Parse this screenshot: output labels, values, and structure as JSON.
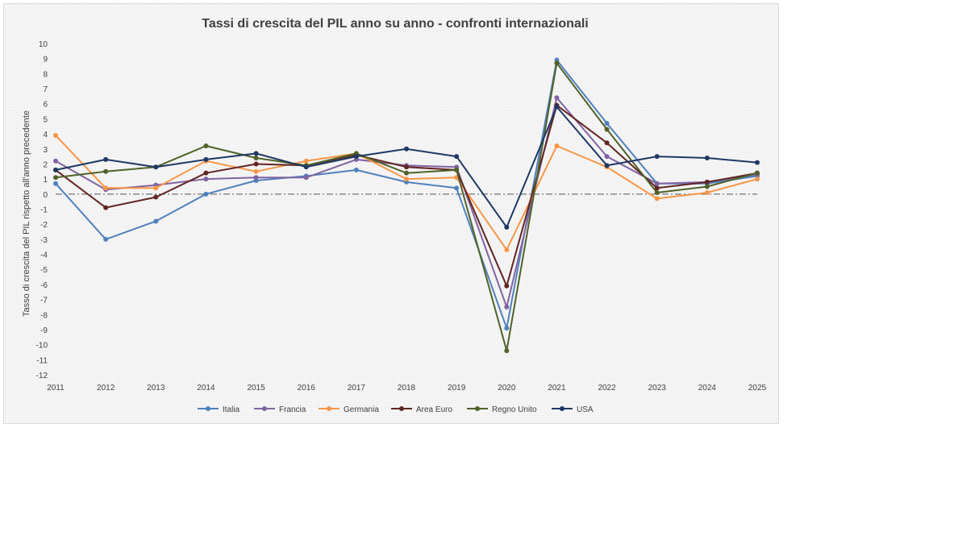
{
  "chart_data": {
    "type": "line",
    "title": "Tassi di crescita del PIL anno su anno - confronti internazionali",
    "ylabel": "Tasso di crescita del PIL rispetto all'anno precedente",
    "xlabel": "",
    "x": [
      "2011",
      "2012",
      "2013",
      "2014",
      "2015",
      "2016",
      "2017",
      "2018",
      "2019",
      "2020",
      "2021",
      "2022",
      "2023",
      "2024",
      "2025"
    ],
    "yticks": [
      "10",
      "9",
      "8",
      "7",
      "6",
      "5",
      "4",
      "3",
      "2",
      "1",
      "0",
      "-1",
      "-2",
      "-3",
      "-4",
      "-5",
      "-6",
      "-7",
      "-8",
      "-9",
      "-10",
      "-11",
      "-12"
    ],
    "ylim": [
      -12,
      10
    ],
    "grid": false,
    "reference_line": {
      "y": 0,
      "style": "dash-dot"
    },
    "legend_position": "bottom",
    "series": [
      {
        "name": "Italia",
        "color": "#4f81bd",
        "values": [
          0.7,
          -3.0,
          -1.8,
          0.0,
          0.9,
          1.2,
          1.6,
          0.8,
          0.4,
          -8.9,
          8.9,
          4.7,
          0.7,
          0.7,
          1.2
        ]
      },
      {
        "name": "Francia",
        "color": "#8064a2",
        "values": [
          2.2,
          0.3,
          0.6,
          1.0,
          1.1,
          1.1,
          2.3,
          1.9,
          1.8,
          -7.5,
          6.4,
          2.5,
          0.7,
          0.8,
          1.3
        ]
      },
      {
        "name": "Germania",
        "color": "#f79646",
        "values": [
          3.9,
          0.4,
          0.4,
          2.2,
          1.5,
          2.2,
          2.7,
          1.0,
          1.1,
          -3.7,
          3.2,
          1.8,
          -0.3,
          0.1,
          1.0
        ]
      },
      {
        "name": "Area Euro",
        "color": "#632523",
        "values": [
          1.6,
          -0.9,
          -0.2,
          1.4,
          2.0,
          1.9,
          2.6,
          1.8,
          1.6,
          -6.1,
          5.9,
          3.4,
          0.4,
          0.8,
          1.4
        ]
      },
      {
        "name": "Regno Unito",
        "color": "#4f6228",
        "values": [
          1.1,
          1.5,
          1.8,
          3.2,
          2.4,
          1.9,
          2.7,
          1.4,
          1.6,
          -10.4,
          8.7,
          4.3,
          0.1,
          0.5,
          1.4
        ]
      },
      {
        "name": "USA",
        "color": "#1f3864",
        "values": [
          1.6,
          2.3,
          1.8,
          2.3,
          2.7,
          1.8,
          2.5,
          3.0,
          2.5,
          -2.2,
          5.8,
          1.9,
          2.5,
          2.4,
          2.1
        ]
      }
    ]
  }
}
